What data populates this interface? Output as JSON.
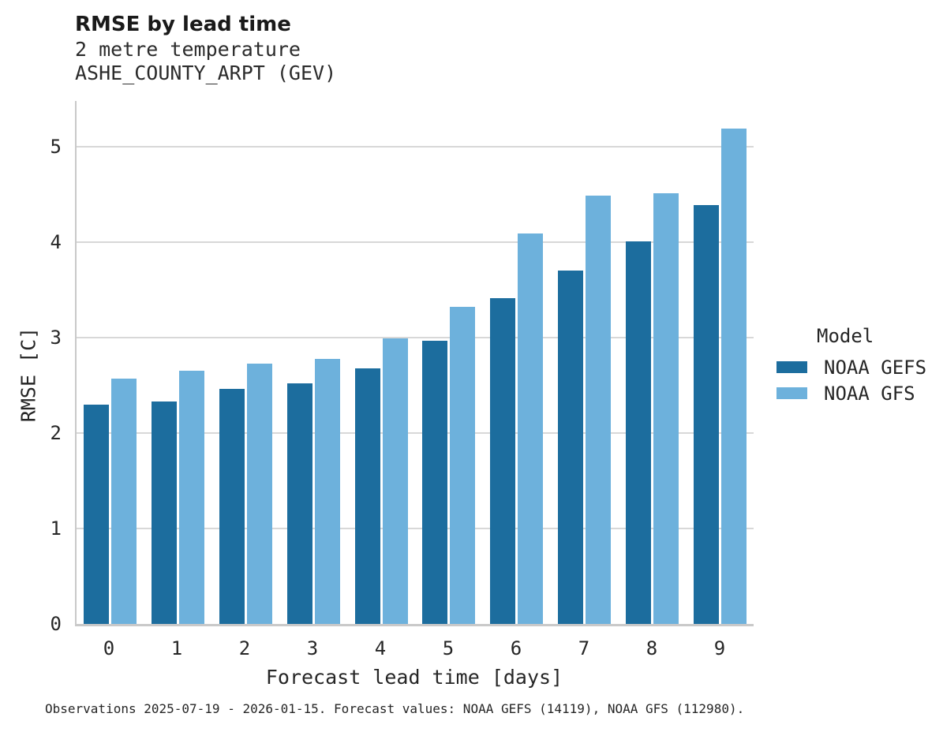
{
  "chart_data": {
    "type": "bar",
    "title": "RMSE by lead time",
    "subtitle1": "2 metre temperature",
    "subtitle2": "ASHE_COUNTY_ARPT (GEV)",
    "xlabel": "Forecast lead time [days]",
    "ylabel": "RMSE [C]",
    "categories": [
      "0",
      "1",
      "2",
      "3",
      "4",
      "5",
      "6",
      "7",
      "8",
      "9"
    ],
    "series": [
      {
        "name": "NOAA GEFS",
        "color": "#1c6d9e",
        "values": [
          2.3,
          2.33,
          2.46,
          2.52,
          2.68,
          2.97,
          3.41,
          3.7,
          4.01,
          4.39
        ]
      },
      {
        "name": "NOAA GFS",
        "color": "#6db1dc",
        "values": [
          2.57,
          2.65,
          2.73,
          2.78,
          2.99,
          3.32,
          4.09,
          4.49,
          4.51,
          5.19
        ]
      }
    ],
    "ylim": [
      0,
      5.48
    ],
    "yticks": [
      0,
      1,
      2,
      3,
      4,
      5
    ],
    "grid": "horizontal",
    "legend_title": "Model",
    "legend_position": "right-of-plot"
  },
  "caption": "Observations 2025-07-19 - 2026-01-15. Forecast values: NOAA GEFS (14119), NOAA GFS (112980).",
  "colors": {
    "grid": "#d8d8d8",
    "axis_spine": "#c9c9c9",
    "text": "#262626",
    "title_text": "#1a1a1a",
    "background": "#ffffff",
    "series_dark": "#1c6d9e",
    "series_light": "#6db1dc"
  }
}
